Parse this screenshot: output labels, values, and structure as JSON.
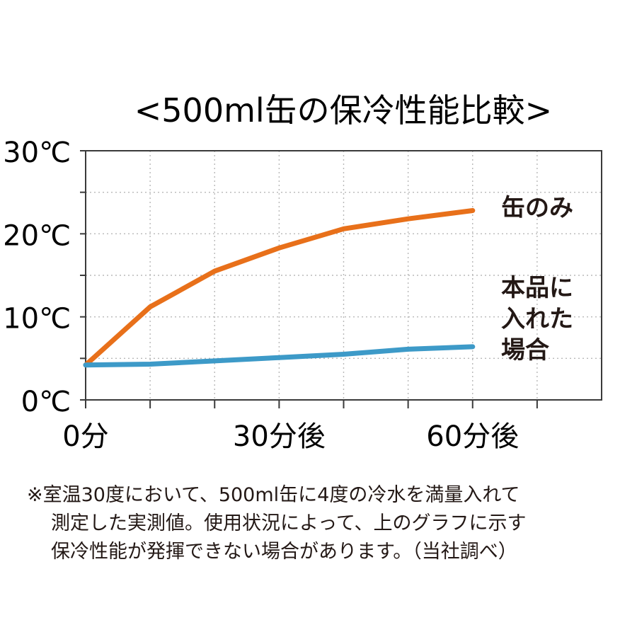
{
  "chart_data": {
    "type": "line",
    "title": "<500ml缶の保冷性能比較>",
    "xlabel": "",
    "ylabel": "",
    "x_unit": "分",
    "x": [
      0,
      10,
      20,
      30,
      40,
      50,
      60
    ],
    "xlim": [
      0,
      80
    ],
    "ylim": [
      0,
      30
    ],
    "x_ticks": [
      {
        "value": 0,
        "label": "0分"
      },
      {
        "value": 30,
        "label": "30分後"
      },
      {
        "value": 60,
        "label": "60分後"
      }
    ],
    "y_ticks": [
      {
        "value": 0,
        "label": "0℃"
      },
      {
        "value": 10,
        "label": "10℃"
      },
      {
        "value": 20,
        "label": "20℃"
      },
      {
        "value": 30,
        "label": "30℃"
      }
    ],
    "grid": true,
    "grid_style": "dotted",
    "series": [
      {
        "name": "缶のみ",
        "label_lines": [
          "缶のみ"
        ],
        "color": "#e8701a",
        "values": [
          4.2,
          11.2,
          15.5,
          18.3,
          20.6,
          21.8,
          22.8
        ]
      },
      {
        "name": "本品に入れた場合",
        "label_lines": [
          "本品に",
          "入れた",
          "場合"
        ],
        "color": "#3d9ac8",
        "values": [
          4.2,
          4.3,
          4.7,
          5.1,
          5.5,
          6.1,
          6.4
        ]
      }
    ]
  },
  "footnote": {
    "lines": [
      "※室温30度において、500ml缶に4度の冷水を満量入れて",
      "測定した実測値。使用状況によって、上のグラフに示す",
      "保冷性能が発揮できない場合があります。（当社調べ）"
    ]
  }
}
